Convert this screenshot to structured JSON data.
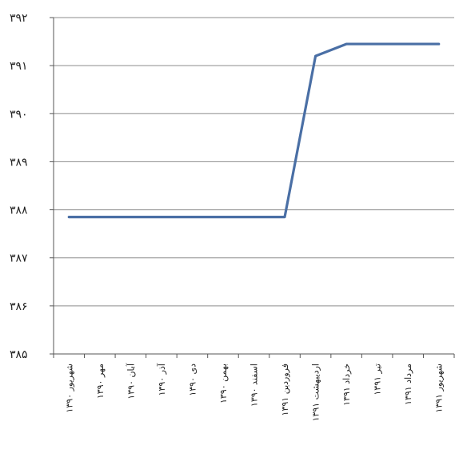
{
  "chart_data": {
    "type": "line",
    "title": "",
    "xlabel": "",
    "ylabel": "",
    "ylim": [
      385,
      392
    ],
    "yticks": [
      "۳۸۵",
      "۳۸۶",
      "۳۸۷",
      "۳۸۸",
      "۳۸۹",
      "۳۹۰",
      "۳۹۱",
      "۳۹۲"
    ],
    "grid": true,
    "legend": "none",
    "categories": [
      "شهریور ۱۳۹۰",
      "مهر ۱۳۹۰",
      "آبان ۱۳۹۰",
      "آذر ۱۳۹۰",
      "دی ۱۳۹۰",
      "بهمن ۱۳۹۰",
      "اسفند ۱۳۹۰",
      "فروردین ۱۳۹۱",
      "اردیبهشت ۱۳۹۱",
      "خرداد ۱۳۹۱",
      "تیر ۱۳۹۱",
      "مرداد ۱۳۹۱",
      "شهریور ۱۳۹۱"
    ],
    "series": [
      {
        "color": "#4a6fa5",
        "values": [
          387.85,
          387.85,
          387.85,
          387.85,
          387.85,
          387.85,
          387.85,
          387.85,
          391.2,
          391.45,
          391.45,
          391.45,
          391.45
        ]
      }
    ]
  }
}
